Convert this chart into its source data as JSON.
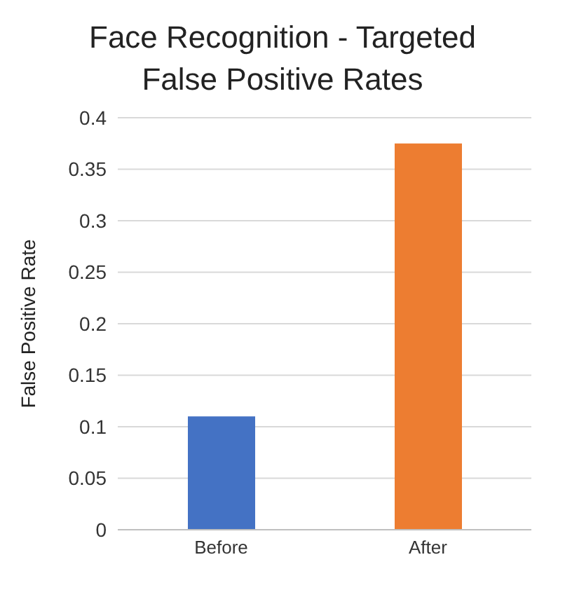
{
  "chart_data": {
    "type": "bar",
    "title": "Face Recognition - Targeted False Positive Rates",
    "ylabel": "False Positive Rate",
    "categories": [
      "Before",
      "After"
    ],
    "values": [
      0.11,
      0.375
    ],
    "colors": [
      "#4472c4",
      "#ed7d31"
    ],
    "ylim": [
      0,
      0.4
    ],
    "yticks": [
      0,
      0.05,
      0.1,
      0.15,
      0.2,
      0.25,
      0.3,
      0.35,
      0.4
    ],
    "grid": "y"
  }
}
